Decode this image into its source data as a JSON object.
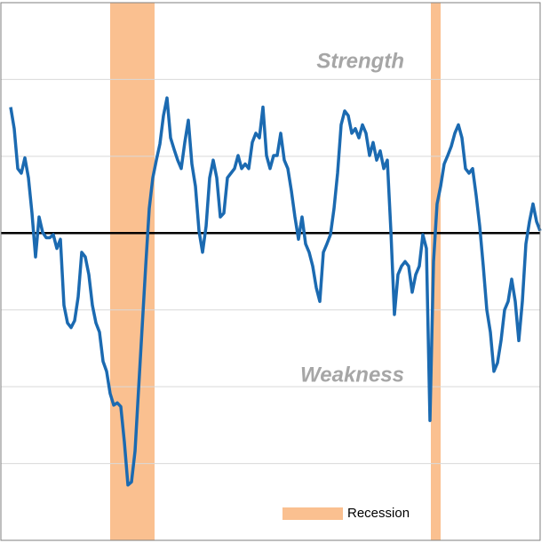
{
  "chart_data": {
    "type": "line",
    "annotations": [
      "Strength",
      "Weakness"
    ],
    "x": [
      0,
      1,
      2,
      3,
      4,
      5,
      6,
      7,
      8,
      9,
      10,
      11,
      12,
      13,
      14,
      15,
      16,
      17,
      18,
      19,
      20,
      21,
      22,
      23,
      24,
      25,
      26,
      27,
      28,
      29,
      30,
      31,
      32,
      33,
      34,
      35,
      36,
      37,
      38,
      39,
      40,
      41,
      42,
      43,
      44,
      45,
      46,
      47,
      48,
      49,
      50,
      51,
      52,
      53,
      54,
      55,
      56,
      57,
      58,
      59,
      60,
      61,
      62,
      63,
      64,
      65,
      66,
      67,
      68,
      69,
      70,
      71,
      72,
      73,
      74,
      75,
      76,
      77,
      78,
      79,
      80,
      81,
      82,
      83,
      84,
      85,
      86,
      87,
      88,
      89,
      90,
      91,
      92,
      93,
      94,
      95,
      96,
      97,
      98,
      99,
      100,
      101,
      102,
      103,
      104,
      105,
      106,
      107,
      108,
      109,
      110,
      111,
      112,
      113,
      114,
      115,
      116,
      117,
      118,
      119,
      120,
      121,
      122,
      123,
      124,
      125,
      126,
      127,
      128,
      129,
      130,
      131,
      132,
      133,
      134,
      135,
      136,
      137,
      138,
      139,
      140,
      141,
      142,
      143,
      144,
      145,
      146,
      147,
      148,
      149
    ],
    "series": [
      {
        "color": "#1b6ab1",
        "values": [
          1.64,
          1.36,
          0.84,
          0.78,
          0.98,
          0.72,
          0.26,
          -0.31,
          0.21,
          0.01,
          -0.06,
          -0.06,
          -0.02,
          -0.2,
          -0.08,
          -0.94,
          -1.17,
          -1.23,
          -1.14,
          -0.83,
          -0.25,
          -0.31,
          -0.54,
          -0.94,
          -1.17,
          -1.29,
          -1.67,
          -1.8,
          -2.09,
          -2.24,
          -2.21,
          -2.26,
          -2.72,
          -3.28,
          -3.24,
          -2.84,
          -2.03,
          -1.23,
          -0.43,
          0.32,
          0.72,
          0.95,
          1.16,
          1.53,
          1.76,
          1.24,
          1.09,
          0.95,
          0.84,
          1.18,
          1.47,
          0.9,
          0.61,
          0.03,
          -0.25,
          0.09,
          0.72,
          0.95,
          0.72,
          0.21,
          0.26,
          0.72,
          0.78,
          0.84,
          1.01,
          0.84,
          0.9,
          0.84,
          1.18,
          1.3,
          1.24,
          1.64,
          1.01,
          0.84,
          1.01,
          1.01,
          1.3,
          0.95,
          0.84,
          0.55,
          0.21,
          -0.08,
          0.21,
          -0.14,
          -0.25,
          -0.43,
          -0.71,
          -0.89,
          -0.25,
          -0.14,
          -0.02,
          0.32,
          0.78,
          1.41,
          1.59,
          1.53,
          1.3,
          1.36,
          1.24,
          1.41,
          1.3,
          1.01,
          1.18,
          0.95,
          1.07,
          0.84,
          0.95,
          0.03,
          -1.06,
          -0.54,
          -0.43,
          -0.37,
          -0.43,
          -0.77,
          -0.54,
          -0.43,
          -0.02,
          -0.2,
          -2.44,
          -0.37,
          0.38,
          0.61,
          0.9,
          1.01,
          1.13,
          1.3,
          1.41,
          1.24,
          0.84,
          0.78,
          0.84,
          0.49,
          0.09,
          -0.43,
          -1.0,
          -1.29,
          -1.8,
          -1.69,
          -1.4,
          -1.0,
          -0.89,
          -0.6,
          -0.89,
          -1.4,
          -0.89,
          -0.14,
          0.15,
          0.38,
          0.15,
          0.03
        ]
      }
    ],
    "recession": {
      "name": "Recession",
      "color": "#fac090",
      "periods": [
        [
          28,
          40.5
        ],
        [
          118.25,
          121
        ]
      ]
    },
    "xlim": [
      0,
      149
    ],
    "ylim": [
      -4,
      3
    ],
    "yticks": [
      -3,
      -2,
      -1,
      0,
      1,
      2
    ],
    "grid": true
  }
}
